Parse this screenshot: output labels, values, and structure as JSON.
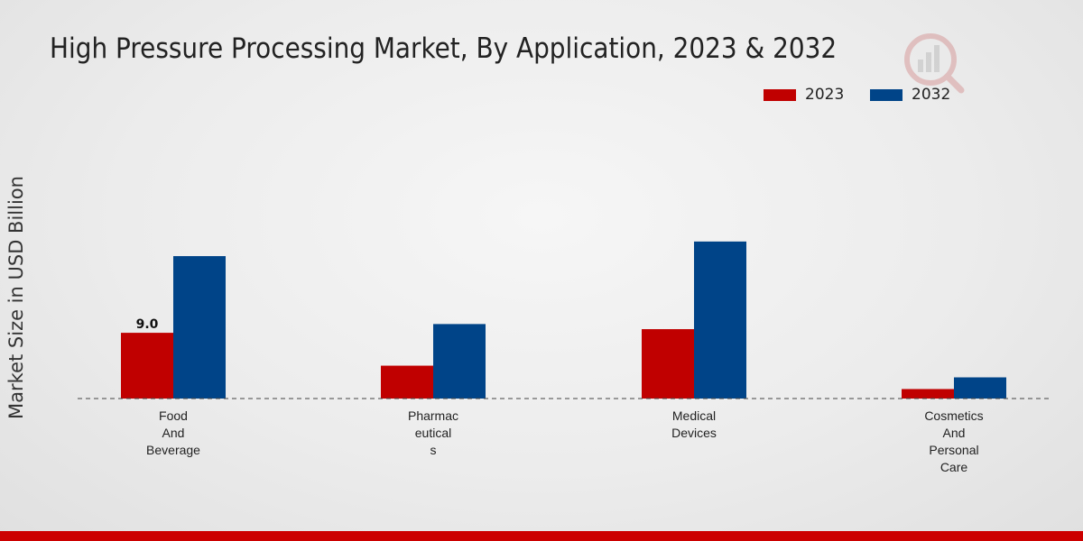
{
  "title": "High Pressure Processing Market, By Application, 2023 & 2032",
  "colors": {
    "2023": "#c00000",
    "2032": "#004488",
    "footer": "#cc0000"
  },
  "chart_data": {
    "type": "bar",
    "title": "High Pressure Processing Market, By Application, 2023 & 2032",
    "xlabel": "",
    "ylabel": "Market Size in USD Billion",
    "ylim": [
      0,
      30
    ],
    "categories": [
      [
        "Food",
        "And",
        "Beverage"
      ],
      [
        "Pharmac",
        "eutical",
        "s"
      ],
      [
        "Medical",
        "Devices"
      ],
      [
        "Cosmetics",
        "And",
        "Personal",
        "Care"
      ]
    ],
    "series": [
      {
        "name": "2023",
        "color": "#c00000",
        "values": [
          9.0,
          4.5,
          9.5,
          1.3
        ]
      },
      {
        "name": "2032",
        "color": "#004488",
        "values": [
          19.5,
          10.2,
          21.5,
          2.9
        ]
      }
    ],
    "data_labels": [
      {
        "series": "2023",
        "category_index": 0,
        "text": "9.0"
      }
    ],
    "legend_position": "top-right",
    "grid": false
  }
}
